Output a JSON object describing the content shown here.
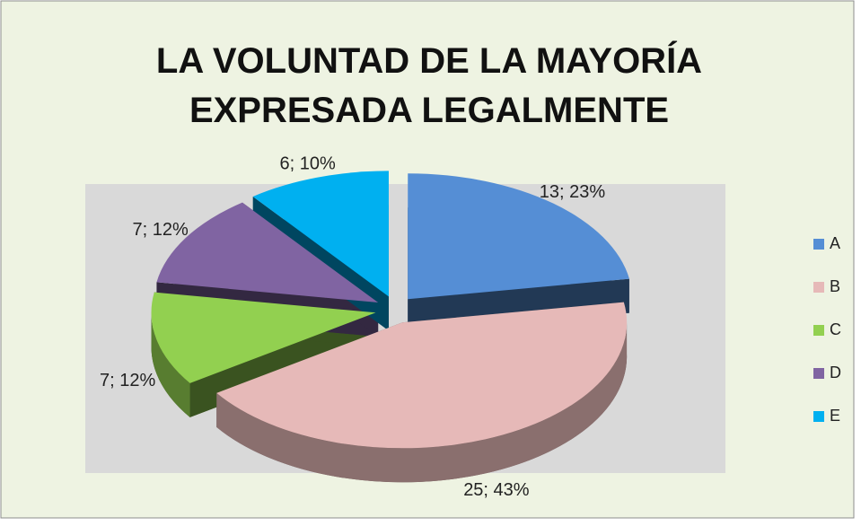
{
  "chart_data": {
    "type": "pie",
    "title": "LA VOLUNTAD DE LA MAYORÍA EXPRESADA LEGALMENTE",
    "categories": [
      "A",
      "B",
      "C",
      "D",
      "E"
    ],
    "values": [
      13,
      25,
      7,
      7,
      6
    ],
    "value_labels": [
      "13; 23%",
      "25; 43%",
      "7; 12%",
      "7; 12%",
      "6; 10%"
    ],
    "colors": [
      "#558ed5",
      "#e6b9b8",
      "#92d050",
      "#8064a2",
      "#00b0f0"
    ],
    "legend": "right"
  }
}
